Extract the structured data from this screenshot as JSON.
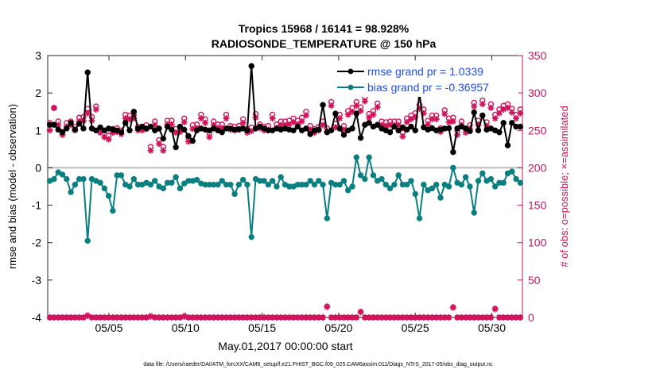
{
  "chart_data": {
    "type": "line",
    "title_line1": "Tropics 15968 / 16141 = 98.928%",
    "title_line2": "RADIOSONDE_TEMPERATURE @ 150 hPa",
    "ylabel_left": "rmse and bias (model - observation)",
    "ylabel_right": "# of obs: o=possible; ×=assimilated",
    "xlabel": "May.01,2017 00:00:00 start",
    "footer": "data file: /Users/raeder/DAI/ATM_forcXX/CAM6_setup/f.e21.FHIST_BGC.f09_025.CAM6assim.011/Diags_NTrS_2017-05/obs_diag_output.nc",
    "ylim_left": [
      -4,
      3
    ],
    "ylim_right": [
      0,
      350
    ],
    "xlim": [
      0.0,
      31.0
    ],
    "left_ticks": [
      "-4",
      "-3",
      "-2",
      "-1",
      "0",
      "1",
      "2",
      "3"
    ],
    "right_ticks": [
      "0",
      "50",
      "100",
      "150",
      "200",
      "250",
      "300",
      "350"
    ],
    "x_ticks": [
      {
        "x": 4.0,
        "label": "05/05"
      },
      {
        "x": 9.0,
        "label": "05/10"
      },
      {
        "x": 14.0,
        "label": "05/15"
      },
      {
        "x": 19.0,
        "label": "05/20"
      },
      {
        "x": 24.0,
        "label": "05/25"
      },
      {
        "x": 29.0,
        "label": "05/30"
      }
    ],
    "legend": {
      "placement": "top-right"
    },
    "colors": {
      "rmse": "#000000",
      "bias": "#0a7f7f",
      "obs": "#d1145a",
      "axis_right": "#c2185b",
      "legend_text": "#1f4fe0"
    },
    "series": [
      {
        "name": "rmse grand pr = 1.0339",
        "values": [
          1.15,
          1.15,
          1.02,
          0.95,
          1.05,
          1.2,
          1.02,
          1.18,
          1.05,
          2.55,
          1.05,
          1.0,
          1.08,
          1.0,
          1.05,
          1.02,
          1.0,
          0.95,
          1.2,
          1.0,
          1.5,
          1.05,
          1.1,
          1.05,
          1.1,
          1.0,
          1.05,
          0.78,
          1.1,
          1.02,
          0.55,
          1.1,
          1.02,
          0.85,
          0.72,
          1.0,
          1.05,
          1.02,
          1.0,
          1.05,
          1.0,
          0.95,
          1.05,
          1.05,
          1.02,
          1.03,
          1.05,
          1.0,
          2.72,
          1.05,
          1.1,
          1.05,
          1.0,
          1.0,
          1.05,
          1.02,
          1.05,
          1.02,
          1.0,
          1.1,
          1.0,
          1.05,
          0.9,
          1.0,
          1.02,
          1.68,
          0.95,
          1.0,
          1.45,
          1.05,
          0.88,
          1.0,
          1.05,
          1.45,
          0.8,
          1.15,
          1.2,
          1.1,
          1.15,
          1.05,
          1.0,
          0.95,
          1.1,
          1.0,
          1.08,
          1.02,
          1.1,
          1.0,
          2.0,
          1.08,
          1.02,
          1.06,
          1.0,
          1.02,
          1.05,
          1.06,
          0.42,
          1.05,
          1.1,
          1.05,
          0.98,
          1.48,
          1.0,
          1.4,
          1.02,
          1.05,
          1.0,
          0.95,
          1.2,
          0.6,
          1.2,
          1.1,
          1.1
        ]
      },
      {
        "name": "bias grand pr = -0.36957",
        "values": [
          -0.35,
          -0.3,
          -0.12,
          -0.18,
          -0.3,
          -0.65,
          -0.45,
          -0.3,
          -0.3,
          -1.95,
          -0.3,
          -0.35,
          -0.4,
          -0.55,
          -0.75,
          -1.15,
          -0.2,
          -0.2,
          -0.45,
          -0.5,
          -0.3,
          -0.45,
          -0.45,
          -0.4,
          -0.45,
          -0.35,
          -0.5,
          -0.55,
          -0.4,
          -0.4,
          -0.25,
          -0.55,
          -0.42,
          -0.35,
          -0.35,
          -0.32,
          -0.42,
          -0.45,
          -0.45,
          -0.45,
          -0.45,
          -0.35,
          -0.45,
          -0.45,
          -0.7,
          -0.45,
          -0.32,
          -0.45,
          -1.85,
          -0.3,
          -0.35,
          -0.35,
          -0.45,
          -0.35,
          -0.5,
          -0.25,
          -0.45,
          -0.5,
          -0.5,
          -0.45,
          -0.45,
          -0.45,
          -0.35,
          -0.45,
          -0.35,
          -0.45,
          -1.35,
          -0.4,
          -0.45,
          -0.45,
          -0.35,
          -0.6,
          -0.5,
          0.28,
          -0.2,
          -0.3,
          0.28,
          -0.2,
          -0.35,
          -0.3,
          -0.45,
          -0.55,
          -0.45,
          -0.2,
          -0.45,
          -0.45,
          -0.35,
          -0.7,
          -1.35,
          -0.45,
          -0.6,
          -0.55,
          -0.45,
          -0.8,
          -0.45,
          -0.5,
          0.0,
          -0.4,
          -0.45,
          -0.25,
          -0.5,
          -1.2,
          -0.35,
          -0.15,
          -0.35,
          -0.3,
          -0.5,
          -0.4,
          -0.4,
          -0.15,
          -0.1,
          -0.3,
          -0.4
        ]
      },
      {
        "name": "obs possible",
        "values": [
          260,
          280,
          262,
          248,
          260,
          262,
          255,
          267,
          268,
          279,
          268,
          282,
          252,
          246,
          243,
          252,
          253,
          250,
          271,
          270,
          271,
          255,
          255,
          257,
          228,
          262,
          237,
          228,
          263,
          263,
          252,
          253,
          266,
          240,
          257,
          258,
          271,
          265,
          246,
          262,
          258,
          258,
          271,
          256,
          255,
          256,
          265,
          252,
          254,
          272,
          258,
          255,
          256,
          271,
          258,
          262,
          262,
          263,
          266,
          263,
          267,
          275,
          256,
          252,
          255,
          262,
          253,
          288,
          259,
          271,
          256,
          276,
          280,
          288,
          281,
          294,
          272,
          276,
          286,
          262,
          261,
          262,
          262,
          262,
          247,
          266,
          270,
          273,
          284,
          278,
          263,
          270,
          270,
          253,
          277,
          266,
          267,
          249,
          262,
          252,
          257,
          287,
          263,
          290,
          261,
          285,
          271,
          278,
          283,
          285,
          279,
          271,
          278
        ]
      },
      {
        "name": "obs assimilated",
        "values": [
          250,
          280,
          257,
          244,
          255,
          257,
          250,
          262,
          263,
          273,
          263,
          278,
          247,
          241,
          238,
          247,
          248,
          245,
          266,
          265,
          266,
          250,
          250,
          252,
          223,
          257,
          232,
          223,
          258,
          258,
          247,
          248,
          261,
          235,
          252,
          253,
          266,
          260,
          241,
          257,
          253,
          253,
          266,
          251,
          250,
          251,
          260,
          247,
          249,
          267,
          253,
          250,
          251,
          266,
          253,
          257,
          257,
          258,
          261,
          258,
          262,
          270,
          251,
          247,
          250,
          257,
          248,
          283,
          254,
          266,
          251,
          271,
          275,
          283,
          276,
          289,
          267,
          271,
          281,
          257,
          256,
          257,
          257,
          257,
          242,
          261,
          265,
          268,
          279,
          273,
          258,
          265,
          265,
          248,
          272,
          261,
          262,
          244,
          257,
          247,
          252,
          282,
          258,
          285,
          256,
          280,
          266,
          273,
          278,
          280,
          274,
          266,
          273
        ]
      },
      {
        "name": "obs possible low",
        "values": [
          0,
          0,
          0,
          0,
          0,
          0,
          0,
          0,
          0,
          3,
          0,
          0,
          0,
          0,
          0,
          0,
          0,
          0,
          0,
          0,
          0,
          0,
          0,
          0,
          2,
          0,
          0,
          0,
          0,
          0,
          0,
          0,
          2,
          0,
          0,
          0,
          0,
          0,
          0,
          0,
          0,
          0,
          0,
          0,
          0,
          0,
          0,
          0,
          0,
          0,
          0,
          0,
          0,
          0,
          0,
          0,
          0,
          0,
          0,
          0,
          0,
          0,
          0,
          0,
          0,
          0,
          15,
          0,
          0,
          0,
          0,
          0,
          0,
          0,
          8,
          0,
          0,
          0,
          0,
          0,
          0,
          0,
          0,
          0,
          0,
          0,
          0,
          0,
          0,
          0,
          0,
          0,
          0,
          0,
          0,
          0,
          14,
          0,
          0,
          0,
          0,
          0,
          0,
          0,
          0,
          0,
          12,
          0,
          0,
          0,
          0,
          0,
          0
        ]
      }
    ]
  }
}
